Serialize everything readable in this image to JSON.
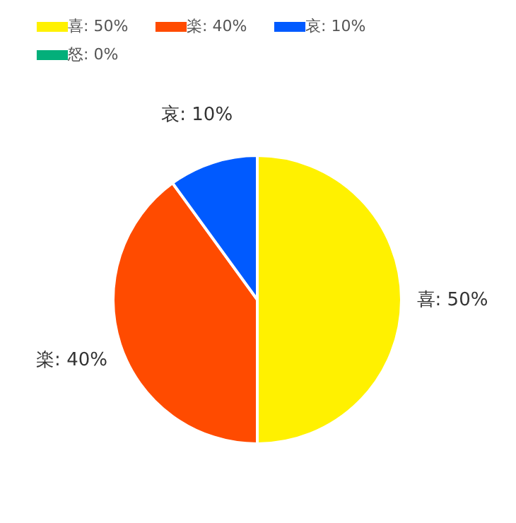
{
  "chart_data": {
    "type": "pie",
    "categories": [
      "喜: 50%",
      "楽: 40%",
      "哀: 10%",
      "怒: 0%"
    ],
    "values": [
      50,
      40,
      10,
      0
    ],
    "colors": [
      "#fff100",
      "#ff4b00",
      "#005aff",
      "#03af7a"
    ],
    "legend": "top left"
  }
}
